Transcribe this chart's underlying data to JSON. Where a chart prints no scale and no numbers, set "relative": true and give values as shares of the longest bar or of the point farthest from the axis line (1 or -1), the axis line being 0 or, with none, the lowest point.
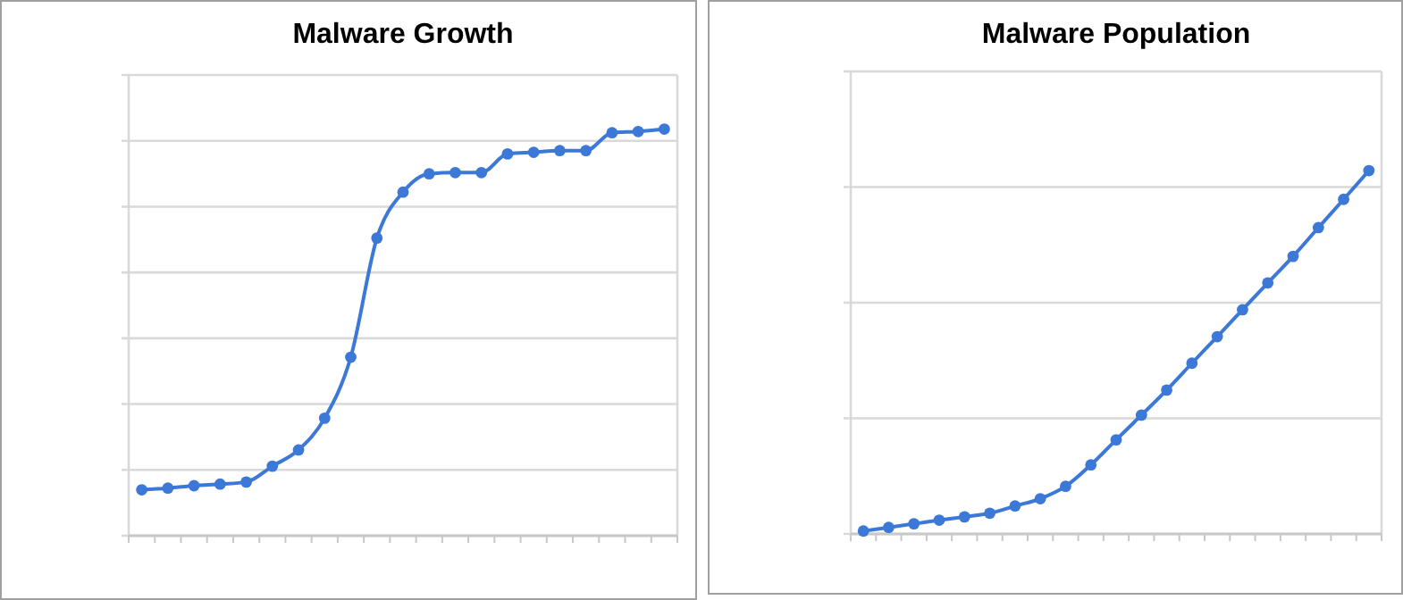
{
  "chart_data": [
    {
      "type": "line",
      "title": "Malware Growth",
      "relative": true,
      "grid": "y",
      "marker": "circle",
      "line_style": "solid",
      "categories": [
        null,
        null,
        null,
        null,
        null,
        null,
        null,
        null,
        null,
        null,
        null,
        null,
        null,
        null,
        null,
        null,
        null,
        null,
        null,
        null,
        null
      ],
      "series": [
        {
          "color": "#3c78d8",
          "values": [
            0.113,
            0.117,
            0.123,
            0.127,
            0.132,
            0.171,
            0.211,
            0.289,
            0.439,
            0.732,
            0.845,
            0.89,
            0.893,
            0.893,
            0.939,
            0.943,
            0.947,
            0.947,
            0.991,
            0.994,
            1
          ]
        }
      ]
    },
    {
      "type": "line",
      "title": "Malware Population",
      "relative": true,
      "grid": "y",
      "marker": "circle",
      "line_style": "solid",
      "categories": [
        null,
        null,
        null,
        null,
        null,
        null,
        null,
        null,
        null,
        null,
        null,
        null,
        null,
        null,
        null,
        null,
        null,
        null,
        null,
        null,
        null
      ],
      "series": [
        {
          "color": "#3c78d8",
          "values": [
            0.008,
            0.018,
            0.028,
            0.038,
            0.047,
            0.057,
            0.077,
            0.097,
            0.131,
            0.19,
            0.259,
            0.327,
            0.396,
            0.47,
            0.543,
            0.617,
            0.691,
            0.764,
            0.843,
            0.921,
            1
          ]
        }
      ]
    }
  ]
}
